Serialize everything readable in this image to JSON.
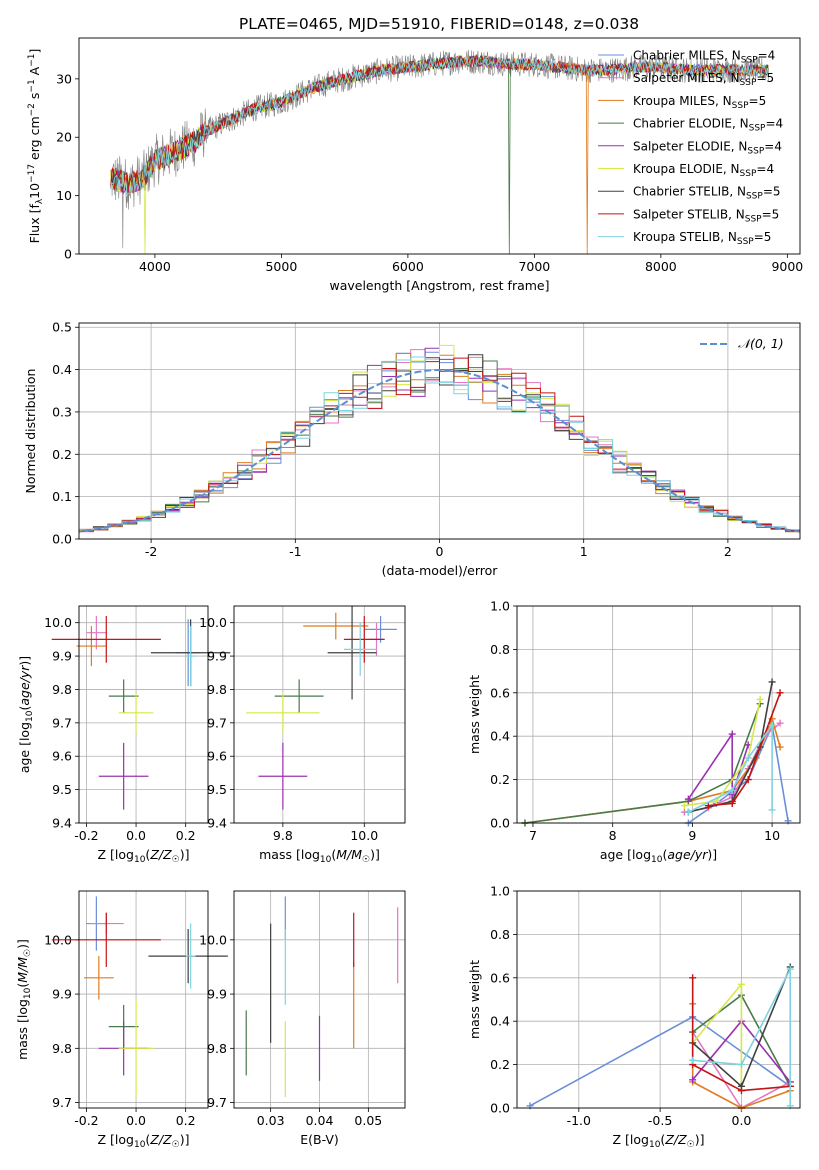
{
  "title": "PLATE=0465, MJD=51910, FIBERID=0148, z=0.038",
  "colors": {
    "Chabrier MILES": "#6a8fd8",
    "Salpeter MILES": "#e377c2",
    "Kroupa MILES": "#e07b20",
    "Chabrier ELODIE": "#4a7a4a",
    "Salpeter ELODIE": "#9b30b0",
    "Kroupa ELODIE": "#d6e84a",
    "Chabrier STELIB": "#404040",
    "Salpeter STELIB": "#c41414",
    "Kroupa STELIB": "#7fd3e0"
  },
  "chart_data": [
    {
      "id": "spectrum",
      "type": "line",
      "xlabel": "wavelength [Angstrom, rest frame]",
      "ylabel": "Flux [f_λ10^-17 erg cm^-2 s^-1 A^-1]",
      "xlim": [
        3400,
        9100
      ],
      "ylim": [
        0,
        37
      ],
      "xticks": [
        4000,
        5000,
        6000,
        7000,
        8000,
        9000
      ],
      "yticks": [
        0,
        10,
        20,
        30
      ],
      "legend_position": "right",
      "continuum": {
        "x": [
          3650,
          3800,
          3900,
          4000,
          4100,
          4200,
          4300,
          4400,
          4600,
          4800,
          5000,
          5200,
          5400,
          5600,
          5800,
          6000,
          6200,
          6400,
          6600,
          6800,
          7000,
          7200,
          7400,
          7600,
          7800,
          8000,
          8200,
          8400,
          8600,
          8800
        ],
        "y": [
          13,
          12,
          13,
          16,
          17,
          18,
          19,
          21,
          23,
          25,
          26,
          28,
          29.5,
          30.5,
          31.5,
          32,
          32.5,
          33,
          33,
          32.5,
          32.5,
          32,
          31.5,
          31.5,
          32,
          32,
          31.5,
          31.5,
          31.5,
          31.5
        ]
      },
      "dropouts": [
        {
          "series": "Kroupa ELODIE",
          "x": 3920
        },
        {
          "series": "Chabrier ELODIE",
          "x": 6800
        },
        {
          "series": "Kroupa MILES",
          "x": 7420
        }
      ],
      "series": [
        {
          "name": "Chabrier MILES",
          "nssp": "4"
        },
        {
          "name": "Salpeter MILES",
          "nssp": "5"
        },
        {
          "name": "Kroupa MILES",
          "nssp": "5"
        },
        {
          "name": "Chabrier ELODIE",
          "nssp": "4"
        },
        {
          "name": "Salpeter ELODIE",
          "nssp": "4"
        },
        {
          "name": "Kroupa ELODIE",
          "nssp": "4"
        },
        {
          "name": "Chabrier STELIB",
          "nssp": "5"
        },
        {
          "name": "Salpeter STELIB",
          "nssp": "5"
        },
        {
          "name": "Kroupa STELIB",
          "nssp": "5"
        }
      ]
    },
    {
      "id": "residuals",
      "type": "step",
      "xlabel": "(data-model)/error",
      "ylabel": "Normed distribution",
      "xlim": [
        -2.5,
        2.5
      ],
      "ylim": [
        0,
        0.51
      ],
      "xticks": [
        -2,
        -1,
        0,
        1,
        2
      ],
      "yticks": [
        0.0,
        0.1,
        0.2,
        0.3,
        0.4,
        0.5
      ],
      "grid": true,
      "bin_width": 0.1,
      "reference_curve": {
        "name": "𝒩(0, 1)",
        "style": "dashed",
        "color": "#5b8fd0"
      }
    },
    {
      "id": "age-metal",
      "type": "errorbar",
      "xlabel": "Z [log10(Z/Z☉)]",
      "ylabel": "age [log10(age/yr)]",
      "xlim": [
        -0.23,
        0.29
      ],
      "ylim": [
        9.4,
        10.05
      ],
      "xticks": [
        -0.2,
        0.0,
        0.2
      ],
      "yticks": [
        9.4,
        9.5,
        9.6,
        9.7,
        9.8,
        9.9,
        10.0
      ],
      "grid": true,
      "points": [
        {
          "series": "Chabrier MILES",
          "x": 0.21,
          "xerr": 0.05,
          "y": 9.91,
          "yerr": 0.1
        },
        {
          "series": "Salpeter MILES",
          "x": -0.16,
          "xerr": 0.04,
          "y": 9.97,
          "yerr": 0.05
        },
        {
          "series": "Kroupa MILES",
          "x": -0.18,
          "xerr": 0.06,
          "y": 9.93,
          "yerr": 0.06
        },
        {
          "series": "Chabrier ELODIE",
          "x": -0.05,
          "xerr": 0.06,
          "y": 9.78,
          "yerr": 0.05
        },
        {
          "series": "Salpeter ELODIE",
          "x": -0.05,
          "xerr": 0.1,
          "y": 9.54,
          "yerr": 0.1
        },
        {
          "series": "Kroupa ELODIE",
          "x": 0.0,
          "xerr": 0.07,
          "y": 9.73,
          "yerr": 0.06
        },
        {
          "series": "Chabrier STELIB",
          "x": 0.22,
          "xerr": 0.16,
          "y": 9.91,
          "yerr": 0.1
        },
        {
          "series": "Salpeter STELIB",
          "x": -0.12,
          "xerr": 0.22,
          "y": 9.95,
          "yerr": 0.07
        },
        {
          "series": "Kroupa STELIB",
          "x": 0.22,
          "xerr": 0.02,
          "y": 9.9,
          "yerr": 0.09
        }
      ]
    },
    {
      "id": "age-mass",
      "type": "errorbar",
      "xlabel": "mass [log10(M/M☉)]",
      "ylabel": "",
      "xlim": [
        9.68,
        10.1
      ],
      "ylim": [
        9.4,
        10.05
      ],
      "xticks": [
        9.8,
        10.0
      ],
      "yticks": [
        9.4,
        9.5,
        9.6,
        9.7,
        9.8,
        9.9,
        10.0
      ],
      "grid": true,
      "points": [
        {
          "series": "Chabrier MILES",
          "x": 10.04,
          "xerr": 0.04,
          "y": 9.98,
          "yerr": 0.04
        },
        {
          "series": "Salpeter MILES",
          "x": 10.03,
          "xerr": 0.02,
          "y": 9.95,
          "yerr": 0.05
        },
        {
          "series": "Kroupa MILES",
          "x": 9.93,
          "xerr": 0.08,
          "y": 9.99,
          "yerr": 0.04
        },
        {
          "series": "Chabrier ELODIE",
          "x": 9.84,
          "xerr": 0.06,
          "y": 9.78,
          "yerr": 0.05
        },
        {
          "series": "Salpeter ELODIE",
          "x": 9.8,
          "xerr": 0.06,
          "y": 9.54,
          "yerr": 0.1
        },
        {
          "series": "Kroupa ELODIE",
          "x": 9.8,
          "xerr": 0.09,
          "y": 9.73,
          "yerr": 0.06
        },
        {
          "series": "Chabrier STELIB",
          "x": 9.97,
          "xerr": 0.06,
          "y": 9.91,
          "yerr": 0.14
        },
        {
          "series": "Salpeter STELIB",
          "x": 10.0,
          "xerr": 0.05,
          "y": 9.95,
          "yerr": 0.07
        },
        {
          "series": "Kroupa STELIB",
          "x": 9.99,
          "xerr": 0.04,
          "y": 9.92,
          "yerr": 0.08
        }
      ]
    },
    {
      "id": "age-weights",
      "type": "line",
      "xlabel": "age [log10(age/yr)]",
      "ylabel": "mass weight",
      "xlim": [
        6.8,
        10.35
      ],
      "ylim": [
        0,
        1.0
      ],
      "xticks": [
        7,
        8,
        9,
        10
      ],
      "yticks": [
        0.0,
        0.2,
        0.4,
        0.6,
        0.8,
        1.0
      ],
      "grid": true,
      "series": [
        {
          "name": "Chabrier MILES",
          "x": [
            8.95,
            9.3,
            9.7,
            10.0,
            10.2
          ],
          "y": [
            0.0,
            0.09,
            0.2,
            0.45,
            0.01
          ]
        },
        {
          "name": "Salpeter MILES",
          "x": [
            8.9,
            9.2,
            9.5,
            9.7,
            9.9,
            10.1
          ],
          "y": [
            0.05,
            0.07,
            0.12,
            0.25,
            0.4,
            0.46
          ]
        },
        {
          "name": "Kroupa MILES",
          "x": [
            6.9,
            8.95,
            9.5,
            9.8,
            10.0,
            10.1
          ],
          "y": [
            0.0,
            0.1,
            0.15,
            0.3,
            0.48,
            0.35
          ]
        },
        {
          "name": "Chabrier ELODIE",
          "x": [
            6.9,
            8.95,
            9.5,
            9.85
          ],
          "y": [
            0.0,
            0.1,
            0.2,
            0.55
          ]
        },
        {
          "name": "Salpeter ELODIE",
          "x": [
            8.95,
            9.5,
            9.5,
            9.7
          ],
          "y": [
            0.11,
            0.41,
            0.13,
            0.36
          ]
        },
        {
          "name": "Kroupa ELODIE",
          "x": [
            8.9,
            9.3,
            9.7,
            9.85
          ],
          "y": [
            0.08,
            0.1,
            0.3,
            0.57
          ]
        },
        {
          "name": "Chabrier STELIB",
          "x": [
            8.95,
            9.5,
            9.85,
            10.0
          ],
          "y": [
            0.05,
            0.1,
            0.35,
            0.65
          ]
        },
        {
          "name": "Salpeter STELIB",
          "x": [
            9.2,
            9.5,
            9.7,
            10.1
          ],
          "y": [
            0.08,
            0.09,
            0.2,
            0.6
          ]
        },
        {
          "name": "Kroupa STELIB",
          "x": [
            8.95,
            9.5,
            9.7,
            10.0,
            10.0
          ],
          "y": [
            0.05,
            0.15,
            0.3,
            0.45,
            0.06
          ]
        }
      ]
    },
    {
      "id": "mass-metal",
      "type": "errorbar",
      "xlabel": "Z [log10(Z/Z☉)]",
      "ylabel": "mass [log10(M/M☉)]",
      "xlim": [
        -0.23,
        0.29
      ],
      "ylim": [
        9.69,
        10.09
      ],
      "xticks": [
        -0.2,
        0.0,
        0.2
      ],
      "yticks": [
        9.7,
        9.8,
        9.9,
        10.0
      ],
      "grid": true,
      "points": [
        {
          "series": "Chabrier MILES",
          "x": -0.16,
          "xerr": 0.04,
          "y": 10.03,
          "yerr": 0.05
        },
        {
          "series": "Salpeter MILES",
          "x": -0.12,
          "xerr": 0.07,
          "y": 10.03,
          "yerr": 0.02
        },
        {
          "series": "Kroupa MILES",
          "x": -0.15,
          "xerr": 0.06,
          "y": 9.93,
          "yerr": 0.04
        },
        {
          "series": "Chabrier ELODIE",
          "x": -0.05,
          "xerr": 0.06,
          "y": 9.84,
          "yerr": 0.04
        },
        {
          "series": "Salpeter ELODIE",
          "x": -0.05,
          "xerr": 0.1,
          "y": 9.8,
          "yerr": 0.05
        },
        {
          "series": "Kroupa ELODIE",
          "x": 0.0,
          "xerr": 0.07,
          "y": 9.8,
          "yerr": 0.09
        },
        {
          "series": "Chabrier STELIB",
          "x": 0.21,
          "xerr": 0.16,
          "y": 9.97,
          "yerr": 0.05
        },
        {
          "series": "Salpeter STELIB",
          "x": -0.12,
          "xerr": 0.22,
          "y": 10.0,
          "yerr": 0.05
        },
        {
          "series": "Kroupa STELIB",
          "x": 0.22,
          "xerr": 0.02,
          "y": 9.97,
          "yerr": 0.06
        }
      ]
    },
    {
      "id": "mass-ebv",
      "type": "errorbar",
      "xlabel": "E(B-V)",
      "ylabel": "",
      "xlim": [
        0.0225,
        0.0575
      ],
      "ylim": [
        9.69,
        10.09
      ],
      "xticks": [
        0.03,
        0.04,
        0.05
      ],
      "yticks": [
        9.7,
        9.8,
        9.9,
        10.0
      ],
      "grid": true,
      "points": [
        {
          "series": "Chabrier MILES",
          "x": 0.033,
          "xerr": 0,
          "y": 10.04,
          "yerr": 0.04
        },
        {
          "series": "Salpeter MILES",
          "x": 0.056,
          "xerr": 0,
          "y": 9.99,
          "yerr": 0.07
        },
        {
          "series": "Kroupa MILES",
          "x": 0.047,
          "xerr": 0,
          "y": 9.88,
          "yerr": 0.08
        },
        {
          "series": "Chabrier ELODIE",
          "x": 0.025,
          "xerr": 0,
          "y": 9.81,
          "yerr": 0.06
        },
        {
          "series": "Salpeter ELODIE",
          "x": 0.04,
          "xerr": 0,
          "y": 9.8,
          "yerr": 0.06
        },
        {
          "series": "Kroupa ELODIE",
          "x": 0.033,
          "xerr": 0,
          "y": 9.78,
          "yerr": 0.07
        },
        {
          "series": "Chabrier STELIB",
          "x": 0.03,
          "xerr": 0,
          "y": 9.92,
          "yerr": 0.11
        },
        {
          "series": "Salpeter STELIB",
          "x": 0.047,
          "xerr": 0,
          "y": 10.0,
          "yerr": 0.05
        },
        {
          "series": "Kroupa STELIB",
          "x": 0.033,
          "xerr": 0,
          "y": 9.95,
          "yerr": 0.07
        }
      ]
    },
    {
      "id": "metal-weights",
      "type": "line",
      "xlabel": "Z [log10(Z/Z☉)]",
      "ylabel": "mass weight",
      "xlim": [
        -1.38,
        0.36
      ],
      "ylim": [
        0,
        1.0
      ],
      "xticks": [
        -1.0,
        -0.5,
        0.0
      ],
      "yticks": [
        0.0,
        0.2,
        0.4,
        0.6,
        0.8,
        1.0
      ],
      "grid": true,
      "series": [
        {
          "name": "Chabrier MILES",
          "x": [
            -1.3,
            -0.3,
            0.3
          ],
          "y": [
            0.01,
            0.42,
            0.1
          ]
        },
        {
          "name": "Salpeter MILES",
          "x": [
            -0.3,
            0.0,
            0.3
          ],
          "y": [
            0.35,
            0.0,
            0.12
          ]
        },
        {
          "name": "Kroupa MILES",
          "x": [
            -0.3,
            -0.3,
            0.0,
            0.3
          ],
          "y": [
            0.48,
            0.12,
            0.0,
            0.08
          ]
        },
        {
          "name": "Chabrier ELODIE",
          "x": [
            -0.3,
            0.0,
            0.3
          ],
          "y": [
            0.35,
            0.52,
            0.1
          ]
        },
        {
          "name": "Salpeter ELODIE",
          "x": [
            -0.3,
            0.0,
            0.3
          ],
          "y": [
            0.13,
            0.4,
            0.12
          ]
        },
        {
          "name": "Kroupa ELODIE",
          "x": [
            -0.3,
            0.0,
            0.0
          ],
          "y": [
            0.3,
            0.57,
            0.1
          ]
        },
        {
          "name": "Chabrier STELIB",
          "x": [
            -0.3,
            0.0,
            0.3
          ],
          "y": [
            0.3,
            0.1,
            0.65
          ]
        },
        {
          "name": "Salpeter STELIB",
          "x": [
            -0.3,
            -0.3,
            0.0,
            0.3
          ],
          "y": [
            0.6,
            0.2,
            0.08,
            0.1
          ]
        },
        {
          "name": "Kroupa STELIB",
          "x": [
            -0.3,
            0.0,
            0.3,
            0.3
          ],
          "y": [
            0.22,
            0.2,
            0.64,
            0.01
          ]
        }
      ]
    }
  ]
}
